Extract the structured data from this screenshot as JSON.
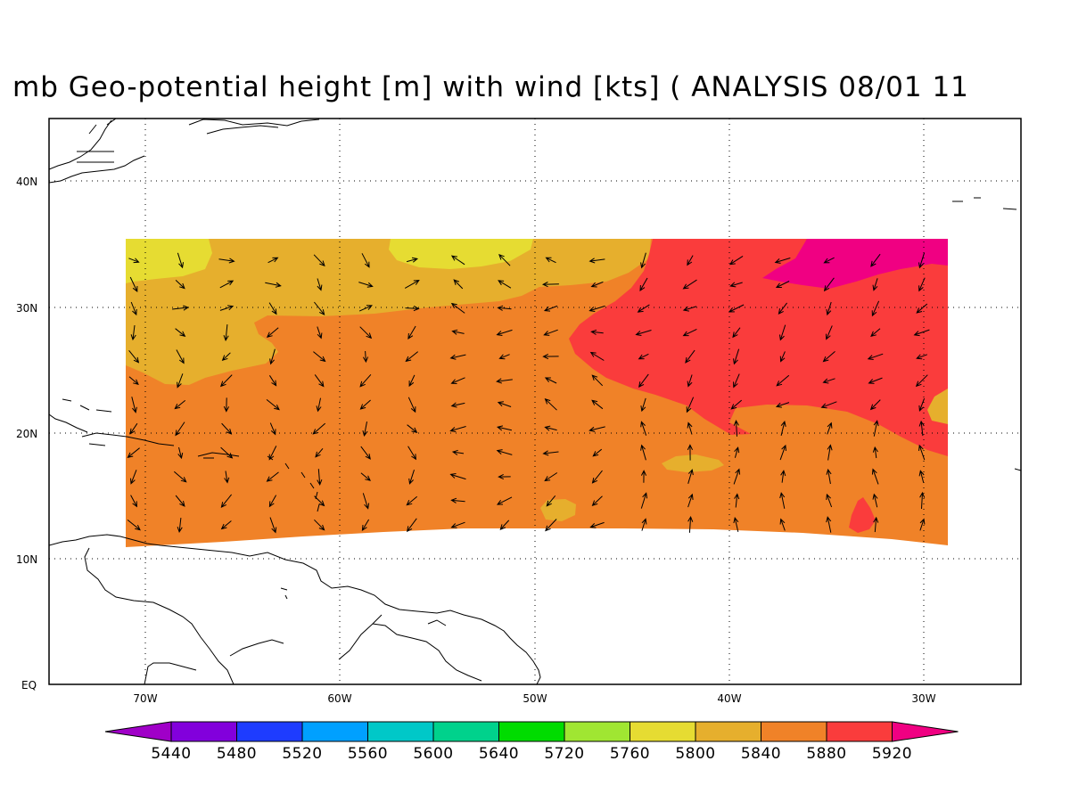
{
  "title": "mb Geo-potential height [m] with wind [kts] ( ANALYSIS 08/01 11",
  "axes": {
    "lat_labels": [
      "40N",
      "30N",
      "20N",
      "10N",
      "EQ"
    ],
    "lon_labels": [
      "70W",
      "60W",
      "50W",
      "40W",
      "30W"
    ]
  },
  "colorbar": {
    "labels": [
      "5440",
      "5480",
      "5520",
      "5560",
      "5600",
      "5640",
      "5720",
      "5760",
      "5800",
      "5840",
      "5880",
      "5920"
    ],
    "colors": [
      "#a000c8",
      "#8200dc",
      "#1e3cff",
      "#00a0ff",
      "#00c8c8",
      "#00d28c",
      "#00dc00",
      "#a0e632",
      "#e6dc32",
      "#e6af2d",
      "#f08228",
      "#fa3c3c",
      "#f00082"
    ]
  },
  "fill_colors": {
    "c5800": "#e6dc32",
    "c5840": "#e6af2d",
    "c5880": "#f08228",
    "c5920": "#fa3c3c",
    "c5960": "#f00082"
  }
}
